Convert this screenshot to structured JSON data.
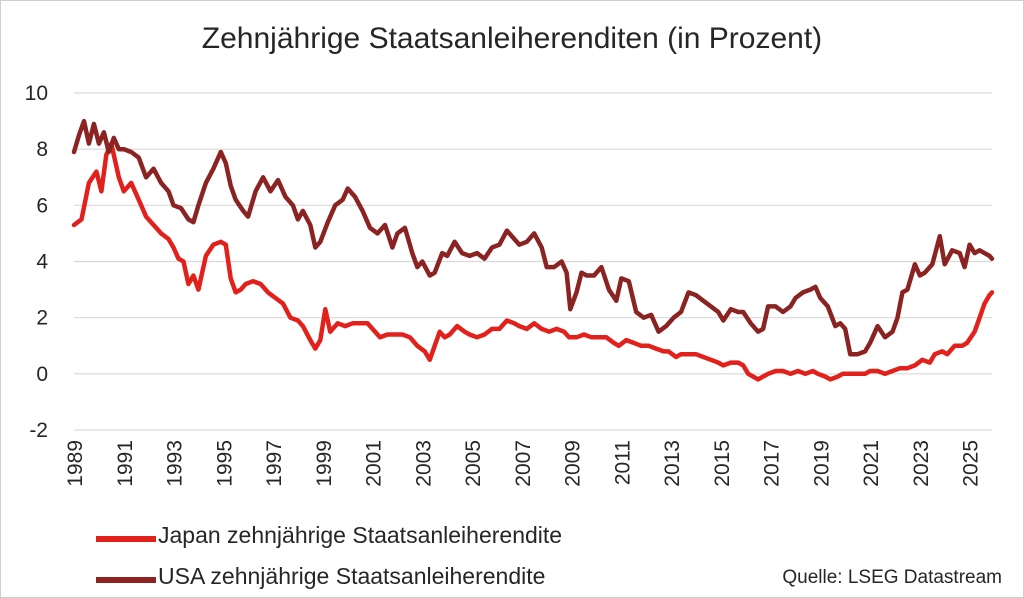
{
  "chart_data": {
    "type": "line",
    "title": "Zehnjährige Staatsanleiherenditen (in Prozent)",
    "xlabel": "",
    "ylabel": "",
    "xlim": [
      1989,
      2025.9
    ],
    "ylim": [
      -2,
      10
    ],
    "y_ticks": [
      "10",
      "8",
      "6",
      "4",
      "2",
      "0",
      "-2"
    ],
    "x_ticks": [
      "1989",
      "1991",
      "1993",
      "1995",
      "1997",
      "1999",
      "2001",
      "2003",
      "2005",
      "2007",
      "2009",
      "2011",
      "2013",
      "2015",
      "2017",
      "2019",
      "2021",
      "2023",
      "2025"
    ],
    "grid": true,
    "legend_position": "bottom-left",
    "series": [
      {
        "name": "Japan zehnjährige Staatsanleiherendite",
        "color": "#e3211c",
        "points": [
          [
            1989.0,
            5.3
          ],
          [
            1989.3,
            5.5
          ],
          [
            1989.6,
            6.8
          ],
          [
            1989.9,
            7.2
          ],
          [
            1990.1,
            6.5
          ],
          [
            1990.3,
            7.8
          ],
          [
            1990.5,
            8.2
          ],
          [
            1990.8,
            7.0
          ],
          [
            1991.0,
            6.5
          ],
          [
            1991.3,
            6.8
          ],
          [
            1991.6,
            6.2
          ],
          [
            1991.9,
            5.6
          ],
          [
            1992.2,
            5.3
          ],
          [
            1992.5,
            5.0
          ],
          [
            1992.8,
            4.8
          ],
          [
            1993.0,
            4.5
          ],
          [
            1993.2,
            4.1
          ],
          [
            1993.4,
            4.0
          ],
          [
            1993.6,
            3.2
          ],
          [
            1993.8,
            3.5
          ],
          [
            1994.0,
            3.0
          ],
          [
            1994.3,
            4.2
          ],
          [
            1994.6,
            4.6
          ],
          [
            1994.9,
            4.7
          ],
          [
            1995.1,
            4.6
          ],
          [
            1995.3,
            3.4
          ],
          [
            1995.5,
            2.9
          ],
          [
            1995.7,
            3.0
          ],
          [
            1995.9,
            3.2
          ],
          [
            1996.2,
            3.3
          ],
          [
            1996.5,
            3.2
          ],
          [
            1996.8,
            2.9
          ],
          [
            1997.1,
            2.7
          ],
          [
            1997.4,
            2.5
          ],
          [
            1997.7,
            2.0
          ],
          [
            1998.0,
            1.9
          ],
          [
            1998.2,
            1.7
          ],
          [
            1998.5,
            1.2
          ],
          [
            1998.7,
            0.9
          ],
          [
            1998.9,
            1.2
          ],
          [
            1999.1,
            2.3
          ],
          [
            1999.3,
            1.5
          ],
          [
            1999.6,
            1.8
          ],
          [
            1999.9,
            1.7
          ],
          [
            2000.2,
            1.8
          ],
          [
            2000.5,
            1.8
          ],
          [
            2000.8,
            1.8
          ],
          [
            2001.0,
            1.6
          ],
          [
            2001.3,
            1.3
          ],
          [
            2001.6,
            1.4
          ],
          [
            2001.9,
            1.4
          ],
          [
            2002.2,
            1.4
          ],
          [
            2002.5,
            1.3
          ],
          [
            2002.8,
            1.0
          ],
          [
            2003.1,
            0.8
          ],
          [
            2003.3,
            0.5
          ],
          [
            2003.5,
            1.0
          ],
          [
            2003.7,
            1.5
          ],
          [
            2003.9,
            1.3
          ],
          [
            2004.1,
            1.4
          ],
          [
            2004.4,
            1.7
          ],
          [
            2004.7,
            1.5
          ],
          [
            2004.9,
            1.4
          ],
          [
            2005.2,
            1.3
          ],
          [
            2005.5,
            1.4
          ],
          [
            2005.8,
            1.6
          ],
          [
            2006.1,
            1.6
          ],
          [
            2006.4,
            1.9
          ],
          [
            2006.7,
            1.8
          ],
          [
            2006.9,
            1.7
          ],
          [
            2007.2,
            1.6
          ],
          [
            2007.5,
            1.8
          ],
          [
            2007.8,
            1.6
          ],
          [
            2008.1,
            1.5
          ],
          [
            2008.4,
            1.6
          ],
          [
            2008.7,
            1.5
          ],
          [
            2008.9,
            1.3
          ],
          [
            2009.2,
            1.3
          ],
          [
            2009.5,
            1.4
          ],
          [
            2009.8,
            1.3
          ],
          [
            2010.1,
            1.3
          ],
          [
            2010.4,
            1.3
          ],
          [
            2010.7,
            1.1
          ],
          [
            2010.9,
            1.0
          ],
          [
            2011.2,
            1.2
          ],
          [
            2011.5,
            1.1
          ],
          [
            2011.8,
            1.0
          ],
          [
            2012.1,
            1.0
          ],
          [
            2012.4,
            0.9
          ],
          [
            2012.7,
            0.8
          ],
          [
            2012.9,
            0.8
          ],
          [
            2013.2,
            0.6
          ],
          [
            2013.4,
            0.7
          ],
          [
            2013.7,
            0.7
          ],
          [
            2014.0,
            0.7
          ],
          [
            2014.3,
            0.6
          ],
          [
            2014.6,
            0.5
          ],
          [
            2014.9,
            0.4
          ],
          [
            2015.1,
            0.3
          ],
          [
            2015.4,
            0.4
          ],
          [
            2015.7,
            0.4
          ],
          [
            2015.9,
            0.3
          ],
          [
            2016.1,
            0.0
          ],
          [
            2016.3,
            -0.1
          ],
          [
            2016.5,
            -0.2
          ],
          [
            2016.7,
            -0.1
          ],
          [
            2016.9,
            0.0
          ],
          [
            2017.2,
            0.1
          ],
          [
            2017.5,
            0.1
          ],
          [
            2017.8,
            0.0
          ],
          [
            2018.1,
            0.1
          ],
          [
            2018.4,
            0.0
          ],
          [
            2018.7,
            0.1
          ],
          [
            2018.9,
            0.0
          ],
          [
            2019.2,
            -0.1
          ],
          [
            2019.4,
            -0.2
          ],
          [
            2019.7,
            -0.1
          ],
          [
            2019.9,
            0.0
          ],
          [
            2020.2,
            0.0
          ],
          [
            2020.5,
            0.0
          ],
          [
            2020.8,
            0.0
          ],
          [
            2021.0,
            0.1
          ],
          [
            2021.3,
            0.1
          ],
          [
            2021.6,
            0.0
          ],
          [
            2021.9,
            0.1
          ],
          [
            2022.2,
            0.2
          ],
          [
            2022.5,
            0.2
          ],
          [
            2022.8,
            0.3
          ],
          [
            2023.1,
            0.5
          ],
          [
            2023.4,
            0.4
          ],
          [
            2023.6,
            0.7
          ],
          [
            2023.9,
            0.8
          ],
          [
            2024.1,
            0.7
          ],
          [
            2024.4,
            1.0
          ],
          [
            2024.7,
            1.0
          ],
          [
            2024.9,
            1.1
          ],
          [
            2025.2,
            1.5
          ],
          [
            2025.4,
            2.0
          ],
          [
            2025.6,
            2.5
          ],
          [
            2025.8,
            2.8
          ],
          [
            2025.9,
            2.9
          ]
        ]
      },
      {
        "name": "USA zehnjährige Staatsanleiherendite",
        "color": "#8b2323",
        "points": [
          [
            1989.0,
            7.9
          ],
          [
            1989.2,
            8.5
          ],
          [
            1989.4,
            9.0
          ],
          [
            1989.6,
            8.2
          ],
          [
            1989.8,
            8.9
          ],
          [
            1990.0,
            8.2
          ],
          [
            1990.2,
            8.6
          ],
          [
            1990.4,
            7.9
          ],
          [
            1990.6,
            8.4
          ],
          [
            1990.8,
            8.0
          ],
          [
            1991.0,
            8.0
          ],
          [
            1991.3,
            7.9
          ],
          [
            1991.6,
            7.7
          ],
          [
            1991.9,
            7.0
          ],
          [
            1992.2,
            7.3
          ],
          [
            1992.5,
            6.8
          ],
          [
            1992.8,
            6.5
          ],
          [
            1993.0,
            6.0
          ],
          [
            1993.3,
            5.9
          ],
          [
            1993.6,
            5.5
          ],
          [
            1993.8,
            5.4
          ],
          [
            1994.0,
            6.0
          ],
          [
            1994.3,
            6.8
          ],
          [
            1994.6,
            7.3
          ],
          [
            1994.9,
            7.9
          ],
          [
            1995.1,
            7.5
          ],
          [
            1995.3,
            6.7
          ],
          [
            1995.5,
            6.2
          ],
          [
            1995.8,
            5.8
          ],
          [
            1996.0,
            5.6
          ],
          [
            1996.3,
            6.5
          ],
          [
            1996.6,
            7.0
          ],
          [
            1996.9,
            6.5
          ],
          [
            1997.2,
            6.9
          ],
          [
            1997.5,
            6.3
          ],
          [
            1997.8,
            6.0
          ],
          [
            1998.0,
            5.5
          ],
          [
            1998.2,
            5.8
          ],
          [
            1998.5,
            5.3
          ],
          [
            1998.7,
            4.5
          ],
          [
            1998.9,
            4.7
          ],
          [
            1999.2,
            5.4
          ],
          [
            1999.5,
            6.0
          ],
          [
            1999.8,
            6.2
          ],
          [
            2000.0,
            6.6
          ],
          [
            2000.3,
            6.3
          ],
          [
            2000.6,
            5.8
          ],
          [
            2000.9,
            5.2
          ],
          [
            2001.2,
            5.0
          ],
          [
            2001.5,
            5.3
          ],
          [
            2001.8,
            4.5
          ],
          [
            2002.0,
            5.0
          ],
          [
            2002.3,
            5.2
          ],
          [
            2002.6,
            4.3
          ],
          [
            2002.8,
            3.8
          ],
          [
            2003.0,
            4.0
          ],
          [
            2003.3,
            3.5
          ],
          [
            2003.5,
            3.6
          ],
          [
            2003.8,
            4.3
          ],
          [
            2004.0,
            4.2
          ],
          [
            2004.3,
            4.7
          ],
          [
            2004.6,
            4.3
          ],
          [
            2004.9,
            4.2
          ],
          [
            2005.2,
            4.3
          ],
          [
            2005.5,
            4.1
          ],
          [
            2005.8,
            4.5
          ],
          [
            2006.1,
            4.6
          ],
          [
            2006.4,
            5.1
          ],
          [
            2006.7,
            4.8
          ],
          [
            2006.9,
            4.6
          ],
          [
            2007.2,
            4.7
          ],
          [
            2007.5,
            5.0
          ],
          [
            2007.8,
            4.5
          ],
          [
            2008.0,
            3.8
          ],
          [
            2008.3,
            3.8
          ],
          [
            2008.6,
            4.0
          ],
          [
            2008.8,
            3.6
          ],
          [
            2008.95,
            2.3
          ],
          [
            2009.2,
            2.9
          ],
          [
            2009.4,
            3.6
          ],
          [
            2009.6,
            3.5
          ],
          [
            2009.9,
            3.5
          ],
          [
            2010.2,
            3.8
          ],
          [
            2010.5,
            3.0
          ],
          [
            2010.8,
            2.6
          ],
          [
            2011.0,
            3.4
          ],
          [
            2011.3,
            3.3
          ],
          [
            2011.6,
            2.2
          ],
          [
            2011.9,
            2.0
          ],
          [
            2012.2,
            2.1
          ],
          [
            2012.5,
            1.5
          ],
          [
            2012.8,
            1.7
          ],
          [
            2013.1,
            2.0
          ],
          [
            2013.4,
            2.2
          ],
          [
            2013.7,
            2.9
          ],
          [
            2014.0,
            2.8
          ],
          [
            2014.3,
            2.6
          ],
          [
            2014.6,
            2.4
          ],
          [
            2014.9,
            2.2
          ],
          [
            2015.1,
            1.9
          ],
          [
            2015.4,
            2.3
          ],
          [
            2015.7,
            2.2
          ],
          [
            2015.9,
            2.2
          ],
          [
            2016.2,
            1.8
          ],
          [
            2016.5,
            1.5
          ],
          [
            2016.7,
            1.6
          ],
          [
            2016.9,
            2.4
          ],
          [
            2017.2,
            2.4
          ],
          [
            2017.5,
            2.2
          ],
          [
            2017.8,
            2.4
          ],
          [
            2018.0,
            2.7
          ],
          [
            2018.3,
            2.9
          ],
          [
            2018.6,
            3.0
          ],
          [
            2018.8,
            3.1
          ],
          [
            2019.0,
            2.7
          ],
          [
            2019.3,
            2.4
          ],
          [
            2019.6,
            1.7
          ],
          [
            2019.8,
            1.8
          ],
          [
            2020.0,
            1.6
          ],
          [
            2020.2,
            0.7
          ],
          [
            2020.5,
            0.7
          ],
          [
            2020.8,
            0.8
          ],
          [
            2021.0,
            1.1
          ],
          [
            2021.3,
            1.7
          ],
          [
            2021.6,
            1.3
          ],
          [
            2021.9,
            1.5
          ],
          [
            2022.1,
            2.0
          ],
          [
            2022.3,
            2.9
          ],
          [
            2022.5,
            3.0
          ],
          [
            2022.8,
            3.9
          ],
          [
            2023.0,
            3.5
          ],
          [
            2023.2,
            3.6
          ],
          [
            2023.5,
            3.9
          ],
          [
            2023.8,
            4.9
          ],
          [
            2024.0,
            3.9
          ],
          [
            2024.3,
            4.4
          ],
          [
            2024.6,
            4.3
          ],
          [
            2024.8,
            3.8
          ],
          [
            2025.0,
            4.6
          ],
          [
            2025.2,
            4.3
          ],
          [
            2025.4,
            4.4
          ],
          [
            2025.6,
            4.3
          ],
          [
            2025.8,
            4.2
          ],
          [
            2025.9,
            4.1
          ]
        ]
      }
    ],
    "source": "Quelle: LSEG Datastream"
  }
}
